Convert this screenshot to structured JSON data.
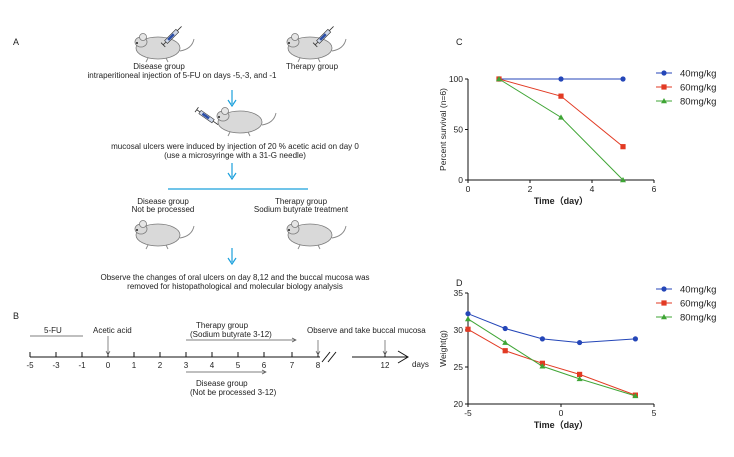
{
  "panel_a": {
    "letter": "A",
    "disease_group_label": "Disease group",
    "injection_text": "intraperitioneal injection of 5-FU on days -5,-3, and -1",
    "therapy_group_label": "Therapy group",
    "ulcer_line1": "mucosal ulcers were induced by injection of 20 % acetic acid on day 0",
    "ulcer_line2": "(use a microsyringe with a 31-G needle)",
    "disease_group_2": "Disease group",
    "not_processed": "Not be processed",
    "therapy_group_2": "Therapy group",
    "sodium_treatment": "Sodium butyrate treatment",
    "observe_line1": "Observe the changes of oral ulcers on day 8,12 and the buccal mucosa was",
    "observe_line2": "removed for histopathological and molecular biology analysis"
  },
  "panel_b": {
    "letter": "B",
    "five_fu": "5-FU",
    "acetic_acid": "Acetic acid",
    "therapy_line1": "Therapy group",
    "therapy_line2": "(Sodium butyrate 3-12)",
    "observe_take": "Observe and take buccal mucosa",
    "disease_line1": "Disease group",
    "disease_line2": "(Not be processed 3-12)",
    "days": "days",
    "ticks": [
      -5,
      -3,
      -1,
      0,
      1,
      2,
      3,
      4,
      5,
      6,
      7,
      8,
      12
    ]
  },
  "chart_data": [
    {
      "type": "line",
      "panel": "C",
      "xlabel": "Time（day）",
      "ylabel": "Percent survival (n=6)",
      "xlim": [
        0,
        6
      ],
      "ylim": [
        0,
        100
      ],
      "xticks": [
        0,
        2,
        4,
        6
      ],
      "yticks": [
        0,
        50,
        100
      ],
      "legend_position": "top-right",
      "series": [
        {
          "name": "40mg/kg",
          "color": "#2446b8",
          "marker": "circle",
          "x": [
            1,
            3,
            5
          ],
          "y": [
            100,
            100,
            100
          ]
        },
        {
          "name": "60mg/kg",
          "color": "#e23a23",
          "marker": "square",
          "x": [
            1,
            3,
            5
          ],
          "y": [
            100,
            83,
            33
          ]
        },
        {
          "name": "80mg/kg",
          "color": "#3fa535",
          "marker": "triangle",
          "x": [
            1,
            3,
            5
          ],
          "y": [
            100,
            62,
            0
          ]
        }
      ]
    },
    {
      "type": "line",
      "panel": "D",
      "xlabel": "Time（day）",
      "ylabel": "Weight(g)",
      "xlim": [
        -5,
        5
      ],
      "ylim": [
        20,
        35
      ],
      "xticks": [
        -5,
        0,
        5
      ],
      "yticks": [
        20,
        25,
        30,
        35
      ],
      "legend_position": "top-right",
      "series": [
        {
          "name": "40mg/kg",
          "color": "#2446b8",
          "marker": "circle",
          "x": [
            -5,
            -3,
            -1,
            1,
            4
          ],
          "y": [
            32.2,
            30.2,
            28.8,
            28.3,
            28.8
          ]
        },
        {
          "name": "60mg/kg",
          "color": "#e23a23",
          "marker": "square",
          "x": [
            -5,
            -3,
            -1,
            1,
            4
          ],
          "y": [
            30.1,
            27.2,
            25.5,
            24.0,
            21.2
          ]
        },
        {
          "name": "80mg/kg",
          "color": "#3fa535",
          "marker": "triangle",
          "x": [
            -5,
            -3,
            -1,
            1,
            4
          ],
          "y": [
            31.5,
            28.3,
            25.1,
            23.4,
            21.1
          ]
        }
      ]
    }
  ]
}
